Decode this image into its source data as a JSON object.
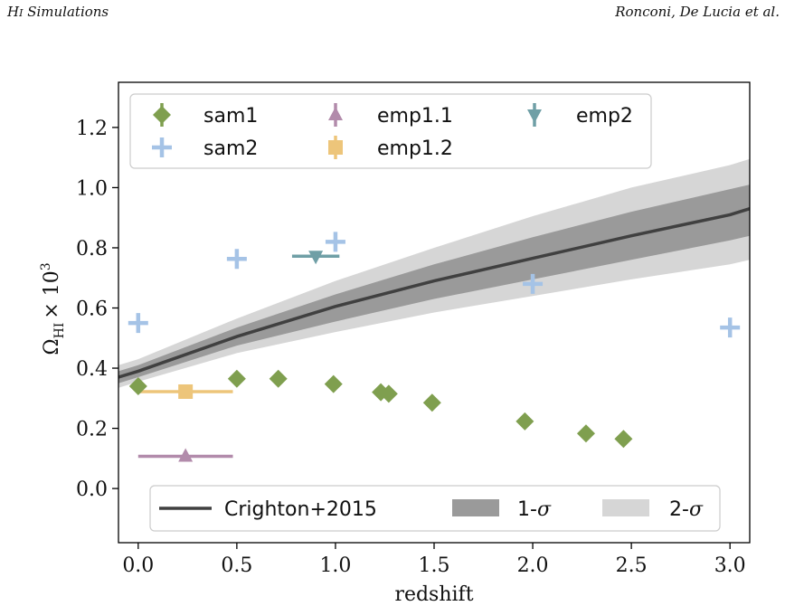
{
  "header": {
    "left": "HI Simulations",
    "left_main": "H",
    "left_sub": "I",
    "left_rest": " Simulations",
    "right": "Ronconi, De Lucia et al."
  },
  "chart_data": {
    "type": "scatter",
    "xlabel": "redshift",
    "ylabel": "Ω_HI × 10^3",
    "ylabel_parts": {
      "omega": "Ω",
      "sub": "HI",
      "times": "× 10",
      "sup": "3"
    },
    "xlim": [
      -0.1,
      3.1
    ],
    "ylim": [
      -0.18,
      1.35
    ],
    "xticks": [
      0.0,
      0.5,
      1.0,
      1.5,
      2.0,
      2.5,
      3.0
    ],
    "xtick_labels": [
      "0.0",
      "0.5",
      "1.0",
      "1.5",
      "2.0",
      "2.5",
      "3.0"
    ],
    "yticks": [
      0.0,
      0.2,
      0.4,
      0.6,
      0.8,
      1.0,
      1.2
    ],
    "ytick_labels": [
      "0.0",
      "0.2",
      "0.4",
      "0.6",
      "0.8",
      "1.0",
      "1.2"
    ],
    "grid": false,
    "colors": {
      "sam1": "#7f9f4f",
      "sam2": "#a5c3e6",
      "emp1_1": "#b28bab",
      "emp1_2": "#edc57a",
      "emp2": "#6f9fa6",
      "model_line": "#404040",
      "band_1sigma": "#9a9a9a",
      "band_2sigma": "#d6d6d6"
    },
    "series": [
      {
        "name": "sam1",
        "marker": "diamond",
        "x": [
          0.0,
          0.5,
          0.71,
          0.99,
          1.23,
          1.27,
          1.49,
          1.96,
          2.27,
          2.46
        ],
        "y": [
          0.34,
          0.365,
          0.365,
          0.347,
          0.32,
          0.315,
          0.285,
          0.223,
          0.183,
          0.165
        ]
      },
      {
        "name": "sam2",
        "marker": "plus",
        "x": [
          0.0,
          0.5,
          1.0,
          2.0,
          3.0
        ],
        "y": [
          0.55,
          0.763,
          0.82,
          0.68,
          0.535
        ]
      },
      {
        "name": "emp1.1",
        "marker": "triangle-up",
        "x": [
          0.24
        ],
        "y": [
          0.107
        ],
        "xerr": [
          [
            0.0,
            0.48
          ]
        ]
      },
      {
        "name": "emp1.2",
        "marker": "square",
        "x": [
          0.24
        ],
        "y": [
          0.322
        ],
        "xerr": [
          [
            0.0,
            0.48
          ]
        ]
      },
      {
        "name": "emp2",
        "marker": "triangle-down",
        "x": [
          0.9
        ],
        "y": [
          0.772
        ],
        "xerr": [
          [
            0.78,
            1.02
          ]
        ]
      }
    ],
    "model": {
      "name": "Crighton+2015",
      "x": [
        -0.1,
        0.0,
        0.5,
        1.0,
        1.5,
        2.0,
        2.5,
        3.0,
        3.1
      ],
      "y": [
        0.37,
        0.39,
        0.505,
        0.605,
        0.69,
        0.765,
        0.84,
        0.91,
        0.93
      ],
      "sigma1_low": [
        0.35,
        0.37,
        0.475,
        0.555,
        0.63,
        0.695,
        0.76,
        0.825,
        0.84
      ],
      "sigma1_high": [
        0.39,
        0.41,
        0.535,
        0.645,
        0.745,
        0.835,
        0.92,
        0.995,
        1.01
      ],
      "sigma2_low": [
        0.335,
        0.355,
        0.45,
        0.52,
        0.585,
        0.64,
        0.695,
        0.745,
        0.76
      ],
      "sigma2_high": [
        0.41,
        0.43,
        0.565,
        0.69,
        0.8,
        0.905,
        1.0,
        1.075,
        1.095
      ]
    },
    "legend_top": {
      "placement": "upper-left",
      "entries": [
        "sam1",
        "emp1.1",
        "emp2",
        "sam2",
        "emp1.2"
      ]
    },
    "legend_bottom": {
      "placement": "lower-center",
      "entries": [
        "Crighton+2015",
        "1-σ",
        "2-σ"
      ],
      "sigma1_prefix": "1-",
      "sigma2_prefix": "2-",
      "sigma_symbol": "σ"
    }
  }
}
